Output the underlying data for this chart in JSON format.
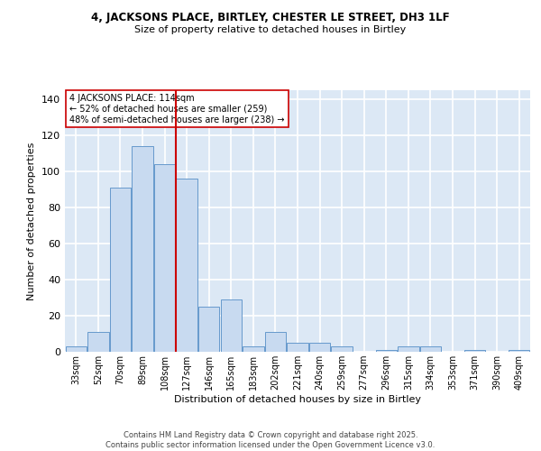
{
  "title1": "4, JACKSONS PLACE, BIRTLEY, CHESTER LE STREET, DH3 1LF",
  "title2": "Size of property relative to detached houses in Birtley",
  "xlabel": "Distribution of detached houses by size in Birtley",
  "ylabel": "Number of detached properties",
  "bar_labels": [
    "33sqm",
    "52sqm",
    "70sqm",
    "89sqm",
    "108sqm",
    "127sqm",
    "146sqm",
    "165sqm",
    "183sqm",
    "202sqm",
    "221sqm",
    "240sqm",
    "259sqm",
    "277sqm",
    "296sqm",
    "315sqm",
    "334sqm",
    "353sqm",
    "371sqm",
    "390sqm",
    "409sqm"
  ],
  "bar_values": [
    3,
    11,
    91,
    114,
    104,
    96,
    25,
    29,
    3,
    11,
    5,
    5,
    3,
    0,
    1,
    3,
    3,
    0,
    1,
    0,
    1
  ],
  "bar_color": "#c8daf0",
  "bar_edge_color": "#6699cc",
  "vline_x_idx": 4.5,
  "vline_color": "#cc0000",
  "annotation_text": "4 JACKSONS PLACE: 114sqm\n← 52% of detached houses are smaller (259)\n48% of semi-detached houses are larger (238) →",
  "annotation_box_color": "white",
  "annotation_box_edge": "#cc0000",
  "ylim": [
    0,
    145
  ],
  "yticks": [
    0,
    20,
    40,
    60,
    80,
    100,
    120,
    140
  ],
  "bg_color": "#dce8f5",
  "grid_color": "white",
  "footer1": "Contains HM Land Registry data © Crown copyright and database right 2025.",
  "footer2": "Contains public sector information licensed under the Open Government Licence v3.0."
}
